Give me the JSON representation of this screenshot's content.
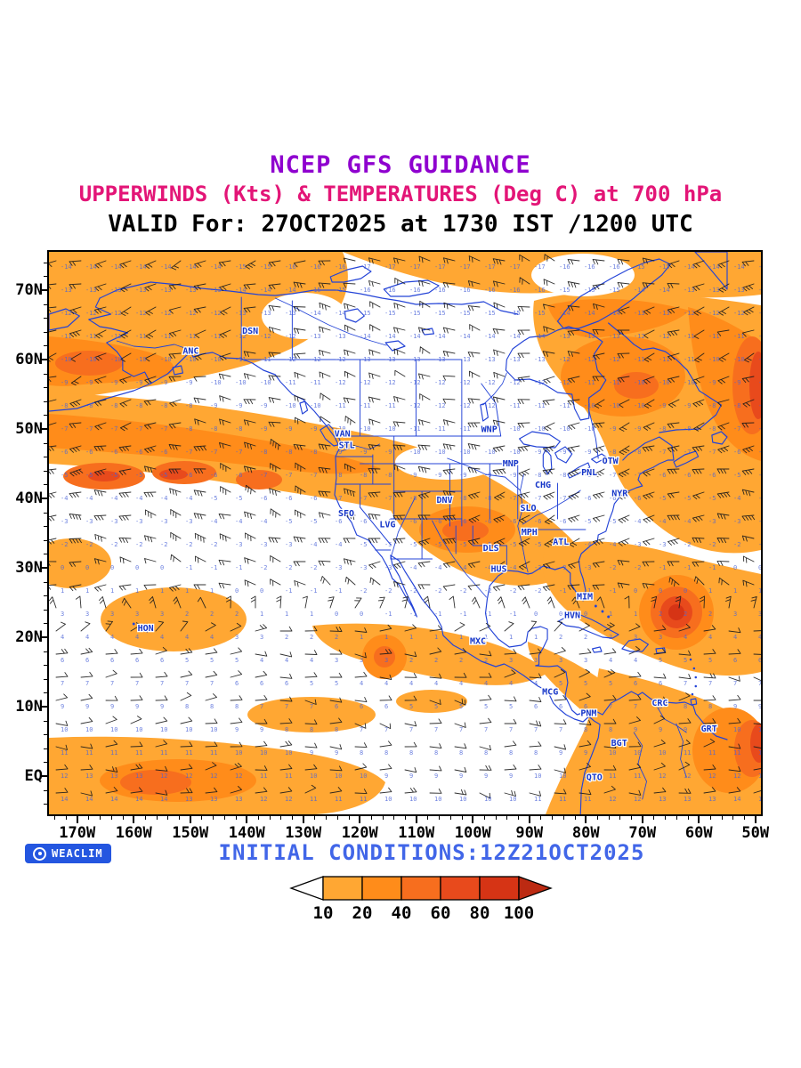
{
  "header": {
    "line1": "NCEP GFS GUIDANCE",
    "line2": "UPPERWINDS (Kts) & TEMPERATURES (Deg C) at 700 hPa",
    "line3": "VALID For: 27OCT2025 at 1730 IST /1200 UTC"
  },
  "footer": {
    "initial_conditions": "INITIAL CONDITIONS:12Z21OCT2025",
    "watermark": "WEACLIM"
  },
  "palette": {
    "purple": "#8f00cf",
    "pink": "#e31577",
    "blue": "#2343d7",
    "blue2": "#4166e8",
    "stationBlue": "#1535c8",
    "barb": "#1a1a1a",
    "tempNum": "#4a63d8",
    "badgeBlue": "#2456e0",
    "o1": "#FFA733",
    "o2": "#FF8C1A",
    "o3": "#F76E1E",
    "r1": "#E84A1C",
    "r2": "#D63415",
    "r3": "#BC2A12"
  },
  "chart_data": {
    "type": "heatmap",
    "title": "NCEP GFS GUIDANCE",
    "subtitle": "UPPERWINDS (Kts) & TEMPERATURES (Deg C) at 700 hPa",
    "valid_line": "VALID For: 27OCT2025 at 1730 IST /1200 UTC",
    "initial_conditions": "12Z21OCT2025",
    "level_hPa": 700,
    "shaded_field": "wind speed (Kts)",
    "overlay_fields": [
      "wind barbs (Kts)",
      "temperature values (Deg C)"
    ],
    "axes": {
      "lat": [
        {
          "label": "70N",
          "value": 70
        },
        {
          "label": "60N",
          "value": 60
        },
        {
          "label": "50N",
          "value": 50
        },
        {
          "label": "40N",
          "value": 40
        },
        {
          "label": "30N",
          "value": 30
        },
        {
          "label": "20N",
          "value": 20
        },
        {
          "label": "10N",
          "value": 10
        },
        {
          "label": "EQ",
          "value": 0
        }
      ],
      "lon": [
        {
          "label": "170W",
          "value": -170
        },
        {
          "label": "160W",
          "value": -160
        },
        {
          "label": "150W",
          "value": -150
        },
        {
          "label": "140W",
          "value": -140
        },
        {
          "label": "130W",
          "value": -130
        },
        {
          "label": "120W",
          "value": -120
        },
        {
          "label": "110W",
          "value": -110
        },
        {
          "label": "100W",
          "value": -100
        },
        {
          "label": "90W",
          "value": -90
        },
        {
          "label": "80W",
          "value": -80
        },
        {
          "label": "70W",
          "value": -70
        },
        {
          "label": "60W",
          "value": -60
        },
        {
          "label": "50W",
          "value": -50
        }
      ]
    },
    "colorbar": {
      "thresholds": [
        "10",
        "20",
        "40",
        "60",
        "80",
        "100"
      ],
      "colors": [
        "#ffffff",
        "#FFA733",
        "#FF8C1A",
        "#F76E1E",
        "#E84A1C",
        "#D63415",
        "#BC2A12"
      ]
    },
    "stations": [
      {
        "code": "ANC",
        "lon": -149.9,
        "lat": 61.2
      },
      {
        "code": "DSN",
        "lon": -139.4,
        "lat": 64.1
      },
      {
        "code": "VAN",
        "lon": -123.1,
        "lat": 49.3
      },
      {
        "code": "STL",
        "lon": -122.3,
        "lat": 47.6
      },
      {
        "code": "SFO",
        "lon": -122.4,
        "lat": 37.8
      },
      {
        "code": "LVG",
        "lon": -115.1,
        "lat": 36.2
      },
      {
        "code": "DNV",
        "lon": -105.0,
        "lat": 39.7
      },
      {
        "code": "WNP",
        "lon": -97.1,
        "lat": 49.9
      },
      {
        "code": "MNP",
        "lon": -93.3,
        "lat": 45.0
      },
      {
        "code": "CHG",
        "lon": -87.6,
        "lat": 41.9
      },
      {
        "code": "SLO",
        "lon": -90.2,
        "lat": 38.6
      },
      {
        "code": "MPH",
        "lon": -90.0,
        "lat": 35.1
      },
      {
        "code": "OTW",
        "lon": -75.7,
        "lat": 45.4
      },
      {
        "code": "PNL",
        "lon": -79.4,
        "lat": 43.7
      },
      {
        "code": "NYR",
        "lon": -74.0,
        "lat": 40.7
      },
      {
        "code": "ATL",
        "lon": -84.4,
        "lat": 33.7
      },
      {
        "code": "DLS",
        "lon": -96.8,
        "lat": 32.8
      },
      {
        "code": "HUS",
        "lon": -95.4,
        "lat": 29.8
      },
      {
        "code": "MIM",
        "lon": -80.2,
        "lat": 25.8
      },
      {
        "code": "HVN",
        "lon": -82.4,
        "lat": 23.1
      },
      {
        "code": "HON",
        "lon": -157.9,
        "lat": 21.3
      },
      {
        "code": "MXC",
        "lon": -99.1,
        "lat": 19.4
      },
      {
        "code": "MCG",
        "lon": -86.3,
        "lat": 12.1
      },
      {
        "code": "PNM",
        "lon": -79.5,
        "lat": 9.0
      },
      {
        "code": "CRC",
        "lon": -66.9,
        "lat": 10.5
      },
      {
        "code": "BGT",
        "lon": -74.1,
        "lat": 4.7
      },
      {
        "code": "GRT",
        "lon": -58.2,
        "lat": 6.8
      },
      {
        "code": "QTO",
        "lon": -78.5,
        "lat": -0.2
      }
    ]
  }
}
